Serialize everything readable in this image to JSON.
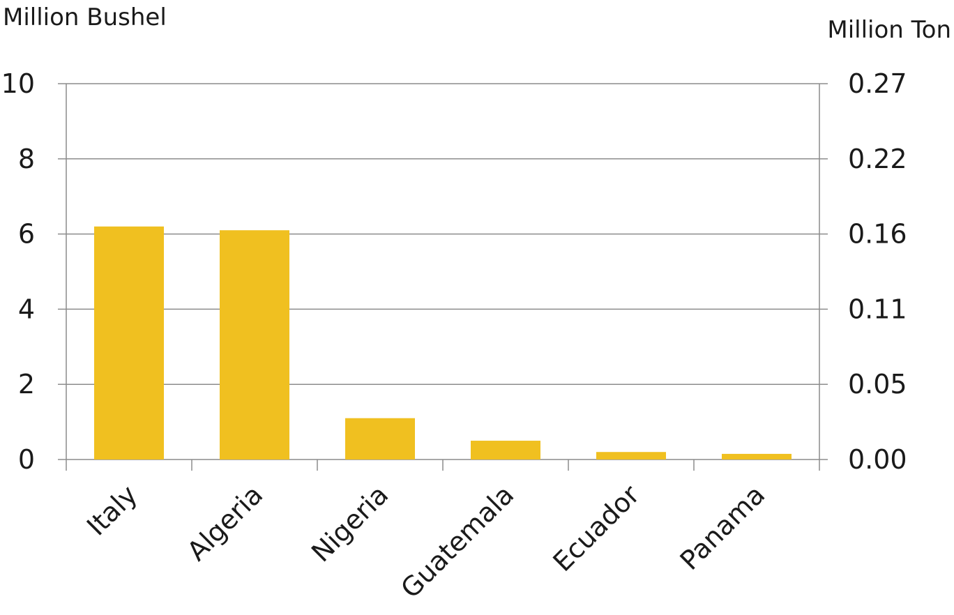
{
  "chart_data": {
    "type": "bar",
    "categories": [
      "Italy",
      "Algeria",
      "Nigeria",
      "Guatemala",
      "Ecuador",
      "Panama"
    ],
    "values": [
      6.2,
      6.1,
      1.1,
      0.5,
      0.2,
      0.15
    ],
    "ylabel": "Million Bushel",
    "y2label": "Million Ton",
    "ylim": [
      0,
      10
    ],
    "y_ticks": [
      "0",
      "2",
      "4",
      "6",
      "8",
      "10"
    ],
    "y2_ticks": [
      "0.00",
      "0.05",
      "0.11",
      "0.16",
      "0.22",
      "0.27"
    ],
    "grid": true,
    "bar_color": "#F0C020"
  }
}
